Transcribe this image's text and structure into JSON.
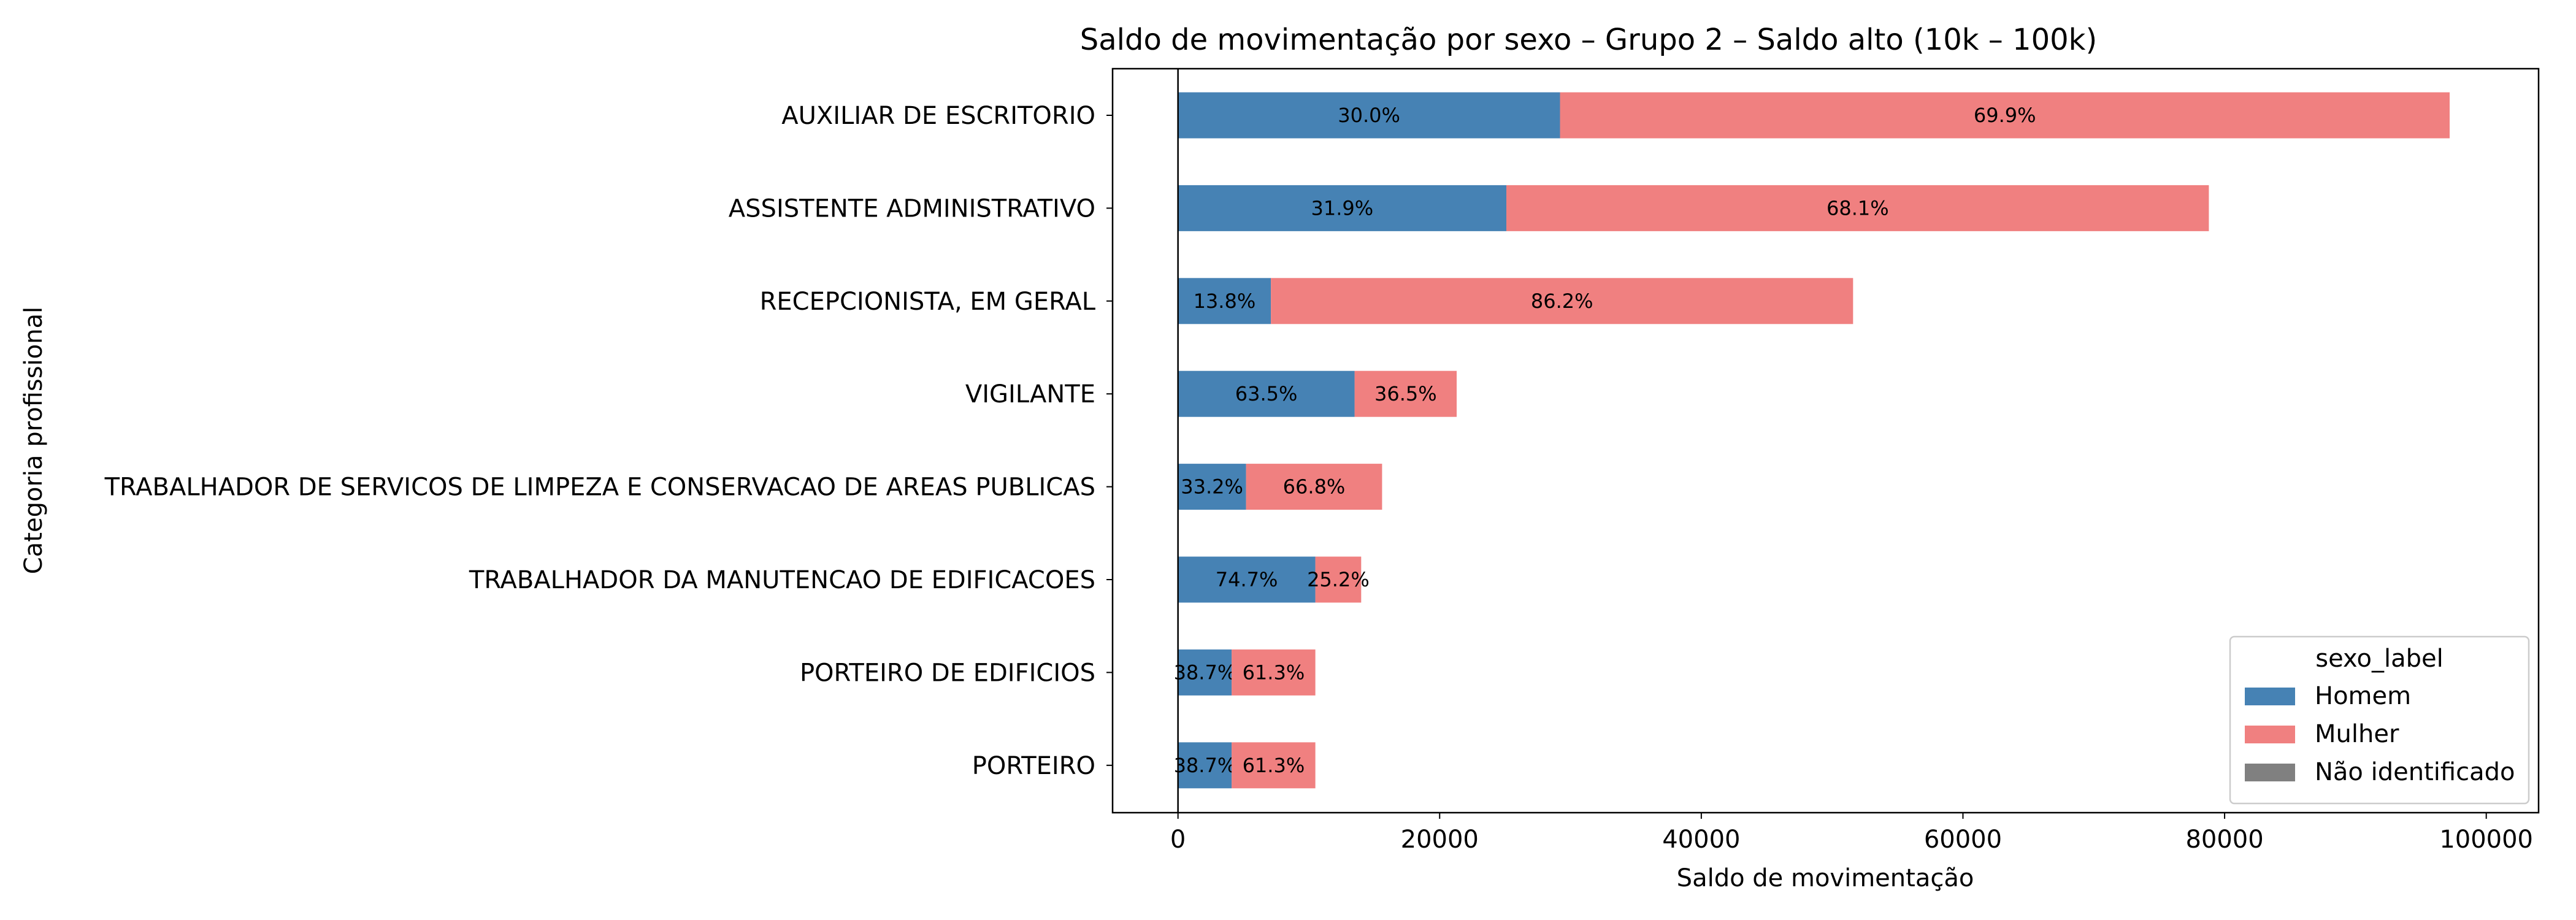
{
  "chart_data": {
    "type": "bar",
    "orientation": "horizontal",
    "stacked": true,
    "title": "Saldo de movimentação por sexo – Grupo 2 – Saldo alto (10k – 100k)",
    "xlabel": "Saldo de movimentação",
    "ylabel": "Categoria profissional",
    "xlim": [
      -5000,
      104000
    ],
    "xticks": [
      0,
      20000,
      40000,
      60000,
      80000,
      100000
    ],
    "xtick_labels": [
      "0",
      "20000",
      "40000",
      "60000",
      "80000",
      "100000"
    ],
    "grid": false,
    "categories": [
      "AUXILIAR DE ESCRITORIO",
      "ASSISTENTE ADMINISTRATIVO",
      "RECEPCIONISTA, EM GERAL",
      "VIGILANTE",
      "TRABALHADOR DE SERVICOS DE LIMPEZA E CONSERVACAO DE AREAS PUBLICAS",
      "TRABALHADOR DA MANUTENCAO DE EDIFICACOES",
      "PORTEIRO DE EDIFICIOS",
      "PORTEIRO"
    ],
    "series": [
      {
        "name": "Homem",
        "color": "#4682b4",
        "values": [
          29200,
          25100,
          7100,
          13500,
          5200,
          10500,
          4100,
          4100
        ],
        "labels": [
          "30.0%",
          "31.9%",
          "13.8%",
          "63.5%",
          "33.2%",
          "74.7%",
          "38.7%",
          "38.7%"
        ]
      },
      {
        "name": "Mulher",
        "color": "#f08080",
        "values": [
          68000,
          53700,
          44500,
          7800,
          10400,
          3500,
          6400,
          6400
        ],
        "labels": [
          "69.9%",
          "68.1%",
          "86.2%",
          "36.5%",
          "66.8%",
          "25.2%",
          "61.3%",
          "61.3%"
        ]
      },
      {
        "name": "Não identificado",
        "color": "#808080",
        "values": [
          0,
          0,
          0,
          0,
          0,
          0,
          0,
          0
        ],
        "labels": [
          "",
          "",
          "",
          "",
          "",
          "",
          "",
          ""
        ]
      }
    ],
    "legend": {
      "title": "sexo_label",
      "position": "lower-right"
    }
  }
}
